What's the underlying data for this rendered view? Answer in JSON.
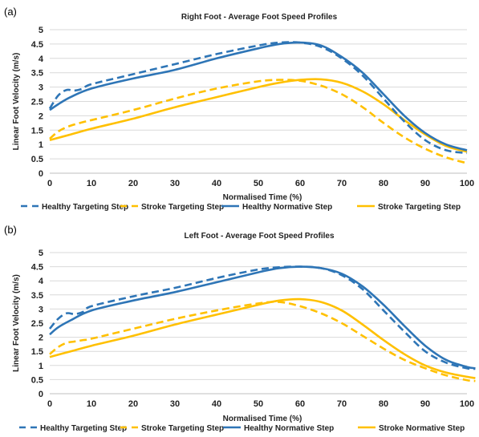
{
  "chart_data": [
    {
      "panel": "(a)",
      "type": "line",
      "title": "Right Foot - Average Foot Speed Profiles",
      "xlabel": "Normalised Time (%)",
      "ylabel": "Linear Foot Velocity (m/s)",
      "xlim": [
        0,
        100
      ],
      "ylim": [
        0,
        5
      ],
      "xticks": [
        "0",
        "10",
        "20",
        "30",
        "40",
        "50",
        "60",
        "70",
        "80",
        "90",
        "100"
      ],
      "yticks": [
        "0",
        "0.5",
        "1",
        "1.5",
        "2",
        "2.5",
        "3",
        "3.5",
        "4",
        "4.5",
        "5"
      ],
      "grid": "horizontal",
      "legend_position": "bottom",
      "series": [
        {
          "name": "Healthy Targeting Step",
          "color": "#2E75B6",
          "style": "dashed",
          "x": [
            0,
            2,
            4,
            6,
            8,
            10,
            20,
            30,
            40,
            50,
            55,
            60,
            65,
            70,
            75,
            80,
            85,
            90,
            95,
            100
          ],
          "y": [
            2.25,
            2.7,
            2.9,
            2.88,
            2.95,
            3.1,
            3.45,
            3.8,
            4.15,
            4.45,
            4.55,
            4.55,
            4.4,
            4.0,
            3.4,
            2.6,
            1.8,
            1.15,
            0.8,
            0.7
          ]
        },
        {
          "name": "Stroke Targeting Step",
          "color": "#FFC000",
          "style": "dashed",
          "x": [
            0,
            2,
            4,
            6,
            8,
            10,
            20,
            30,
            40,
            50,
            55,
            60,
            65,
            70,
            75,
            80,
            85,
            90,
            95,
            100
          ],
          "y": [
            1.2,
            1.45,
            1.6,
            1.7,
            1.78,
            1.85,
            2.2,
            2.6,
            2.95,
            3.2,
            3.25,
            3.22,
            3.05,
            2.75,
            2.3,
            1.75,
            1.25,
            0.85,
            0.55,
            0.35
          ]
        },
        {
          "name": "Healthy Normative Step",
          "color": "#2E75B6",
          "style": "solid",
          "x": [
            0,
            2,
            5,
            10,
            20,
            30,
            40,
            50,
            55,
            60,
            65,
            70,
            75,
            80,
            85,
            90,
            95,
            100
          ],
          "y": [
            2.2,
            2.4,
            2.65,
            2.95,
            3.3,
            3.6,
            4.0,
            4.35,
            4.5,
            4.55,
            4.45,
            4.05,
            3.5,
            2.75,
            2.0,
            1.4,
            1.0,
            0.8
          ]
        },
        {
          "name": "Stroke Targeting Step",
          "color": "#FFC000",
          "style": "solid",
          "x": [
            0,
            5,
            10,
            20,
            30,
            40,
            50,
            55,
            60,
            65,
            70,
            75,
            80,
            85,
            90,
            95,
            100
          ],
          "y": [
            1.15,
            1.35,
            1.55,
            1.9,
            2.3,
            2.65,
            3.0,
            3.15,
            3.25,
            3.27,
            3.15,
            2.85,
            2.4,
            1.85,
            1.35,
            0.95,
            0.75
          ]
        }
      ]
    },
    {
      "panel": "(b)",
      "type": "line",
      "title": "Left Foot - Average Foot Speed Profiles",
      "xlabel": "Normalised Time (%)",
      "ylabel": "Linear Foot Velocity (m/s)",
      "xlim": [
        0,
        100
      ],
      "ylim": [
        0,
        5
      ],
      "xticks": [
        "0",
        "10",
        "20",
        "30",
        "40",
        "50",
        "60",
        "70",
        "80",
        "90",
        "100"
      ],
      "yticks": [
        "0",
        "0.5",
        "1",
        "1.5",
        "2",
        "2.5",
        "3",
        "3.5",
        "4",
        "4.5",
        "5"
      ],
      "grid": "horizontal",
      "legend_position": "bottom",
      "series": [
        {
          "name": "Healthy Targeting Step",
          "color": "#2E75B6",
          "style": "dashed",
          "x": [
            0,
            2,
            4,
            6,
            8,
            10,
            20,
            30,
            40,
            50,
            55,
            60,
            65,
            70,
            75,
            80,
            85,
            90,
            95,
            100,
            102
          ],
          "y": [
            2.3,
            2.65,
            2.85,
            2.82,
            2.9,
            3.1,
            3.45,
            3.75,
            4.1,
            4.4,
            4.48,
            4.5,
            4.45,
            4.2,
            3.7,
            2.95,
            2.2,
            1.5,
            1.1,
            0.9,
            0.88
          ]
        },
        {
          "name": "Stroke Targeting Step",
          "color": "#FFC000",
          "style": "dashed",
          "x": [
            0,
            2,
            4,
            6,
            8,
            10,
            20,
            30,
            40,
            50,
            55,
            60,
            65,
            70,
            75,
            80,
            85,
            90,
            95,
            100,
            102
          ],
          "y": [
            1.4,
            1.65,
            1.8,
            1.85,
            1.9,
            1.95,
            2.3,
            2.65,
            2.95,
            3.2,
            3.25,
            3.1,
            2.85,
            2.5,
            2.05,
            1.6,
            1.2,
            0.9,
            0.65,
            0.48,
            0.45
          ]
        },
        {
          "name": "Healthy Normative Step",
          "color": "#2E75B6",
          "style": "solid",
          "x": [
            0,
            2,
            5,
            10,
            20,
            30,
            40,
            50,
            55,
            60,
            65,
            70,
            75,
            80,
            85,
            90,
            95,
            100,
            102
          ],
          "y": [
            2.1,
            2.35,
            2.6,
            2.95,
            3.3,
            3.6,
            3.95,
            4.3,
            4.45,
            4.5,
            4.45,
            4.25,
            3.8,
            3.15,
            2.4,
            1.7,
            1.2,
            0.95,
            0.9
          ]
        },
        {
          "name": "Stroke Normative Step",
          "color": "#FFC000",
          "style": "solid",
          "x": [
            0,
            5,
            10,
            20,
            30,
            40,
            50,
            55,
            60,
            65,
            70,
            75,
            80,
            85,
            90,
            95,
            100,
            102
          ],
          "y": [
            1.3,
            1.5,
            1.7,
            2.05,
            2.45,
            2.8,
            3.15,
            3.3,
            3.35,
            3.25,
            2.95,
            2.45,
            1.9,
            1.4,
            1.0,
            0.75,
            0.6,
            0.55
          ]
        }
      ]
    }
  ]
}
